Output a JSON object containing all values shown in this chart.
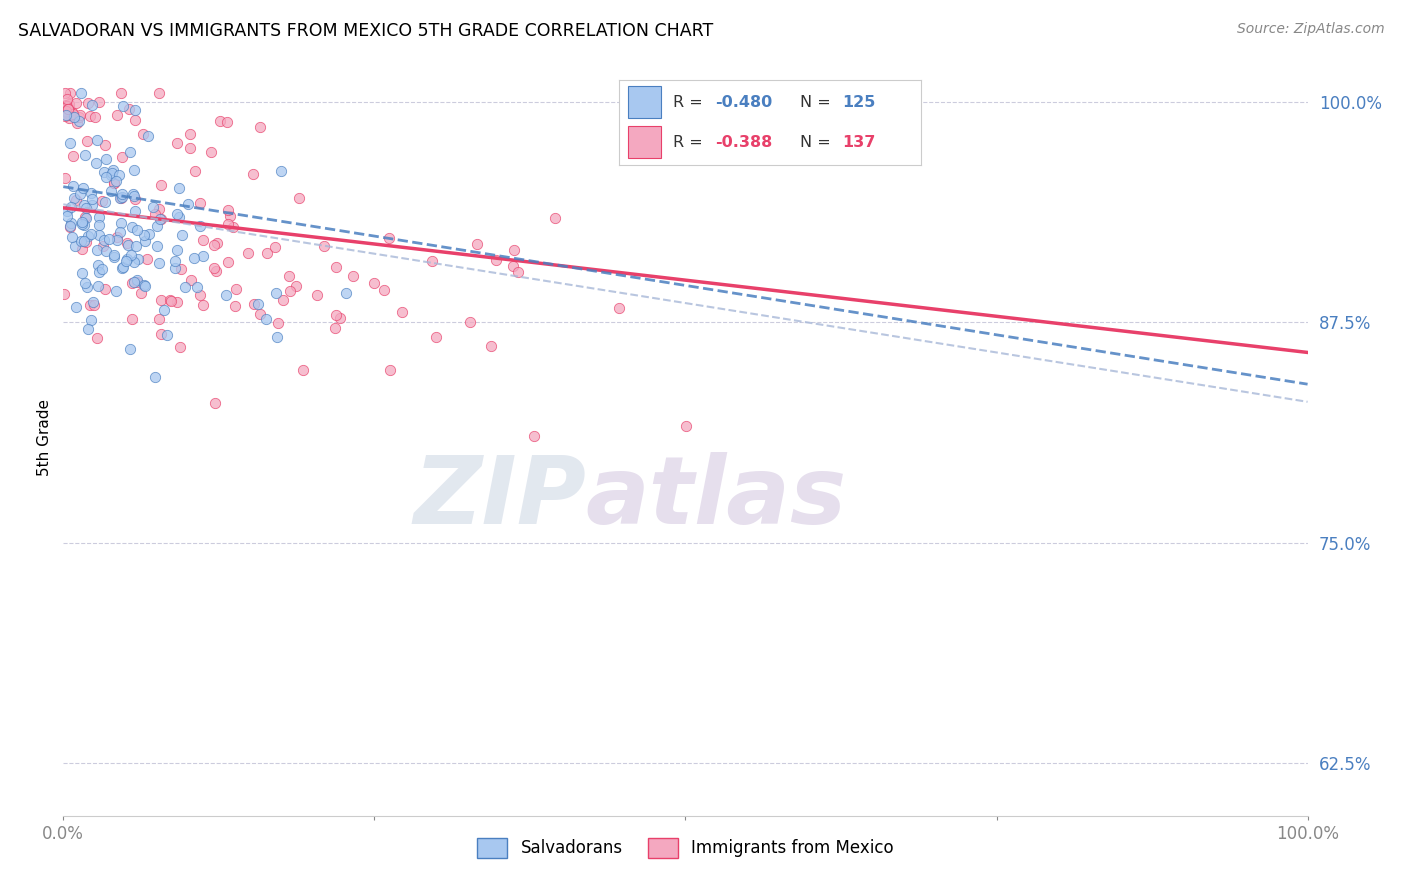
{
  "title": "SALVADORAN VS IMMIGRANTS FROM MEXICO 5TH GRADE CORRELATION CHART",
  "source": "Source: ZipAtlas.com",
  "ylabel": "5th Grade",
  "xlim": [
    0.0,
    1.0
  ],
  "ylim": [
    0.595,
    1.025
  ],
  "yticks": [
    0.625,
    0.75,
    0.875,
    1.0
  ],
  "ytick_labels": [
    "62.5%",
    "75.0%",
    "87.5%",
    "100.0%"
  ],
  "color_salvador": "#A8C8F0",
  "color_mexico": "#F4A8C0",
  "color_line_salvador": "#4A7FC0",
  "color_line_mexico": "#E8406A",
  "color_line_dashed": "#A8B8D8",
  "watermark_zip": "ZIP",
  "watermark_atlas": "atlas",
  "background_color": "#ffffff",
  "r_salvador": -0.48,
  "r_mexico": -0.388,
  "n_salvador": 125,
  "n_mexico": 137,
  "seed": 42,
  "line_sal_x0": 0.0,
  "line_sal_y0": 0.952,
  "line_sal_x1": 1.0,
  "line_sal_y1": 0.84,
  "line_mex_x0": 0.0,
  "line_mex_y0": 0.94,
  "line_mex_x1": 1.0,
  "line_mex_y1": 0.858,
  "line_dash_x0": 0.0,
  "line_dash_y0": 0.942,
  "line_dash_x1": 1.0,
  "line_dash_y1": 0.83
}
